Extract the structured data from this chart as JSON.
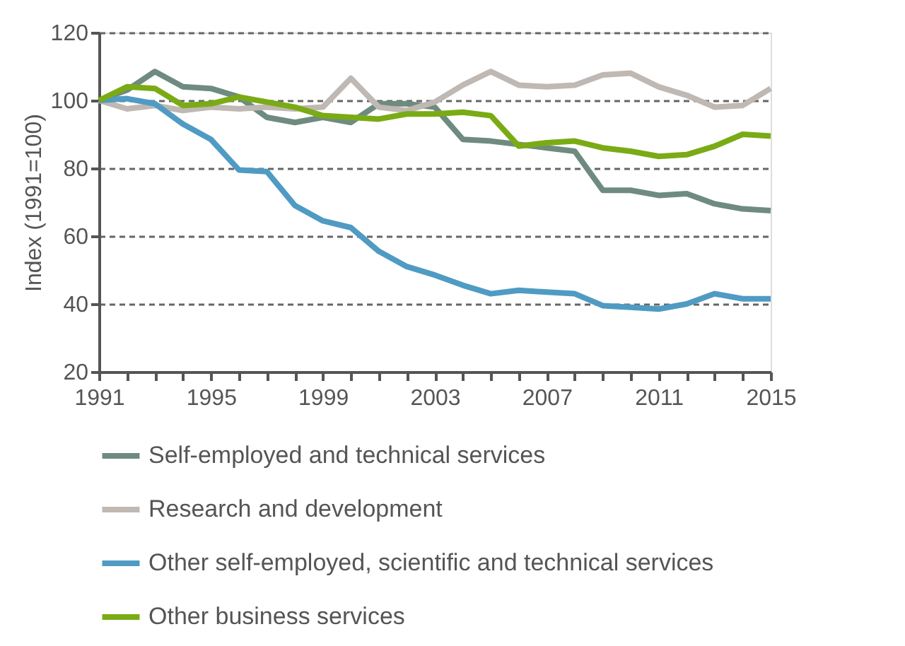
{
  "chart_data": {
    "type": "line",
    "ylabel": "Index (1991=100)",
    "x": [
      1991,
      1992,
      1993,
      1994,
      1995,
      1996,
      1997,
      1998,
      1999,
      2000,
      2001,
      2002,
      2003,
      2004,
      2005,
      2006,
      2007,
      2008,
      2009,
      2010,
      2011,
      2012,
      2013,
      2014,
      2015
    ],
    "xlim": [
      1991,
      2015
    ],
    "xticks": [
      1991,
      {
        "value": 1992,
        "label": null
      },
      {
        "value": 1993,
        "label": null
      },
      {
        "value": 1994,
        "label": null
      },
      1995,
      {
        "value": 1996,
        "label": null
      },
      {
        "value": 1997,
        "label": null
      },
      {
        "value": 1998,
        "label": null
      },
      1999,
      {
        "value": 2000,
        "label": null
      },
      {
        "value": 2001,
        "label": null
      },
      {
        "value": 2002,
        "label": null
      },
      2003,
      {
        "value": 2004,
        "label": null
      },
      {
        "value": 2005,
        "label": null
      },
      {
        "value": 2006,
        "label": null
      },
      2007,
      {
        "value": 2008,
        "label": null
      },
      {
        "value": 2009,
        "label": null
      },
      {
        "value": 2010,
        "label": null
      },
      2011,
      {
        "value": 2012,
        "label": null
      },
      {
        "value": 2013,
        "label": null
      },
      {
        "value": 2014,
        "label": null
      },
      2015
    ],
    "ylim": [
      20,
      120
    ],
    "yticks": [
      20,
      40,
      60,
      80,
      100,
      120
    ],
    "grid": "y",
    "legend": "bottom",
    "marker": "none",
    "line_style": "solid",
    "series": [
      {
        "name": "Self-employed and technical services",
        "color": "#6f8b80",
        "values": [
          100,
          103,
          108.5,
          104,
          103.5,
          101,
          95,
          93.5,
          95,
          93.5,
          99,
          99,
          98,
          88.5,
          88,
          87,
          86,
          85,
          73.5,
          73.5,
          72,
          72.5,
          69.5,
          68,
          67.5
        ]
      },
      {
        "name": "Research and development",
        "color": "#bfb8b3",
        "values": [
          100,
          97.5,
          98.5,
          97,
          98,
          97.5,
          98,
          97.5,
          98,
          106.5,
          98,
          97,
          99.5,
          104.5,
          108.5,
          104.5,
          104,
          104.5,
          107.5,
          108,
          104,
          101.5,
          98,
          98.5,
          103.5
        ]
      },
      {
        "name": "Other self-employed, scientific and technical services",
        "color": "#4f9bc3",
        "values": [
          100,
          100.5,
          99,
          93,
          88.5,
          79.5,
          79,
          69,
          64.5,
          62.5,
          55.5,
          51,
          48.5,
          45.5,
          43,
          44,
          43.5,
          43,
          39.5,
          39,
          38.5,
          40,
          43,
          41.5,
          41.5
        ]
      },
      {
        "name": "Other business services",
        "color": "#7aab15",
        "values": [
          100,
          104,
          103.5,
          98.5,
          99,
          101,
          99.5,
          98,
          95.5,
          95,
          94.5,
          96,
          96,
          96.5,
          95.5,
          86.5,
          87.5,
          88,
          86,
          85,
          83.5,
          84,
          86.5,
          90,
          89.5
        ]
      }
    ]
  }
}
